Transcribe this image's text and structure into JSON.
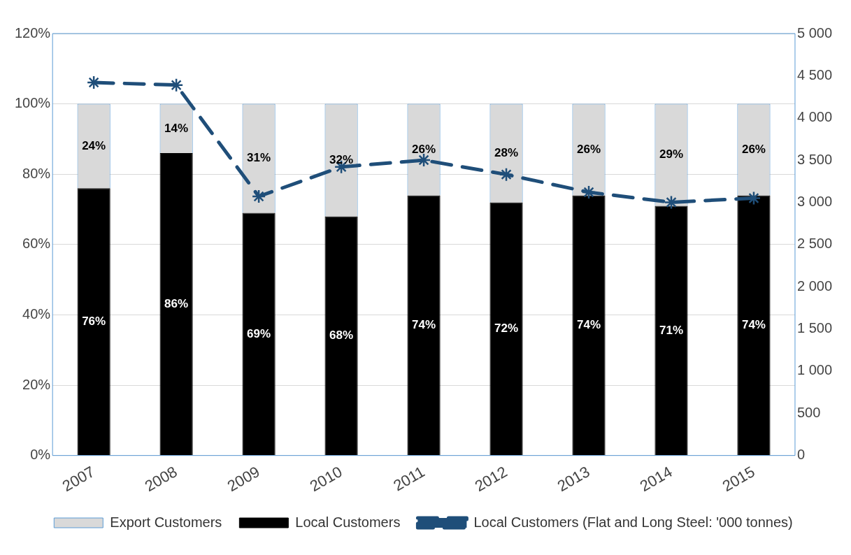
{
  "chart_data": {
    "type": "bar",
    "stacked": true,
    "categories": [
      "2007",
      "2008",
      "2009",
      "2010",
      "2011",
      "2012",
      "2013",
      "2014",
      "2015"
    ],
    "series": [
      {
        "name": "Local Customers",
        "color": "#000000",
        "values": [
          76,
          86,
          69,
          68,
          74,
          72,
          74,
          71,
          74
        ],
        "value_labels": [
          "76%",
          "86%",
          "69%",
          "68%",
          "74%",
          "72%",
          "74%",
          "71%",
          "74%"
        ]
      },
      {
        "name": "Export Customers",
        "color": "#d9d9d9",
        "values": [
          24,
          14,
          31,
          32,
          26,
          28,
          26,
          29,
          26
        ],
        "value_labels": [
          "24%",
          "14%",
          "31%",
          "32%",
          "26%",
          "28%",
          "26%",
          "29%",
          "26%"
        ]
      },
      {
        "name": "Local Customers (Flat and Long Steel: '000 tonnes)",
        "type": "line",
        "axis": "y2",
        "color": "#1f4e79",
        "line_style": "dashed",
        "marker": "cross",
        "values": [
          4420,
          4390,
          3070,
          3420,
          3500,
          3330,
          3120,
          3000,
          3050
        ]
      }
    ],
    "ylim": [
      0,
      120
    ],
    "yticks": [
      {
        "value": 0,
        "label": "0%"
      },
      {
        "value": 20,
        "label": "20%"
      },
      {
        "value": 40,
        "label": "40%"
      },
      {
        "value": 60,
        "label": "60%"
      },
      {
        "value": 80,
        "label": "80%"
      },
      {
        "value": 100,
        "label": "100%"
      },
      {
        "value": 120,
        "label": "120%"
      }
    ],
    "y2lim": [
      0,
      5000
    ],
    "y2ticks": [
      0,
      500,
      {
        "value": 1000,
        "label": "1 000"
      },
      {
        "value": 1500,
        "label": "1 500"
      },
      {
        "value": 2000,
        "label": "2 000"
      },
      {
        "value": 2500,
        "label": "2 500"
      },
      {
        "value": 3000,
        "label": "3 000"
      },
      {
        "value": 3500,
        "label": "3 500"
      },
      {
        "value": 4000,
        "label": "4 000"
      },
      {
        "value": 4500,
        "label": "4 500"
      },
      {
        "value": 5000,
        "label": "5 000"
      }
    ],
    "grid": "y",
    "legend": "bottom"
  }
}
